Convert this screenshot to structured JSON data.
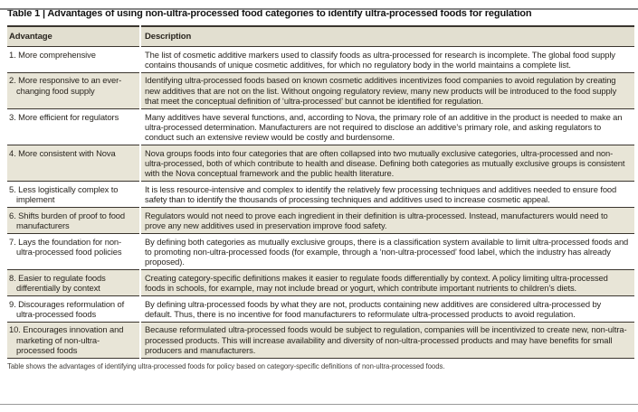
{
  "page": {
    "title": "Table 1 | Advantages of using non-ultra-processed food categories to identify ultra-processed foods for regulation",
    "footnote": "Table shows the advantages of identifying ultra-processed foods for policy based on category-specific definitions of non-ultra-processed foods."
  },
  "colors": {
    "row_shade": "#e8e5d7",
    "header_shade": "#e2dfd0",
    "rule_dark": "#3a352e",
    "rule_gray": "#8c8c8c",
    "text": "#29251f"
  },
  "table": {
    "columns": [
      "Advantage",
      "Description"
    ],
    "rows": [
      {
        "advantage": "1. More comprehensive",
        "description": "The list of cosmetic additive markers used to classify foods as ultra-processed for research is incomplete. The global food supply contains thousands of unique cosmetic additives, for which no regulatory body in the world maintains a complete list."
      },
      {
        "advantage": "2. More responsive to an ever-changing food supply",
        "description": "Identifying ultra-processed foods based on known cosmetic additives incentivizes food companies to avoid regulation by creating new additives that are not on the list. Without ongoing regulatory review, many new products will be introduced to the food supply that meet the conceptual definition of ‘ultra-processed’ but cannot be identified for regulation."
      },
      {
        "advantage": "3. More efficient for regulators",
        "description": "Many additives have several functions, and, according to Nova, the primary role of an additive in the product is needed to make an ultra-processed determination. Manufacturers are not required to disclose an additive’s primary role, and asking regulators to conduct such an extensive review would be costly and burdensome."
      },
      {
        "advantage": "4. More consistent with Nova",
        "description": "Nova groups foods into four categories that are often collapsed into two mutually exclusive categories, ultra-processed and non-ultra-processed, both of which contribute to health and disease. Defining both categories as mutually exclusive groups is consistent with the Nova conceptual framework and the public health literature."
      },
      {
        "advantage": "5. Less logistically complex to implement",
        "description": "It is less resource-intensive and complex to identify the relatively few processing techniques and additives needed to ensure food safety than to identify the thousands of processing techniques and additives used to increase cosmetic appeal."
      },
      {
        "advantage": "6. Shifts burden of proof to food manufacturers",
        "description": "Regulators would not need to prove each ingredient in their definition is ultra-processed. Instead, manufacturers would need to prove any new additives used in preservation improve food safety."
      },
      {
        "advantage": "7. Lays the foundation for non-ultra-processed food policies",
        "description": "By defining both categories as mutually exclusive groups, there is a classification system available to limit ultra-processed foods and to promoting non-ultra-processed foods (for example, through a ‘non-ultra-processed’ food label, which the industry has already proposed)."
      },
      {
        "advantage": "8. Easier to regulate foods differentially by context",
        "description": "Creating category-specific definitions makes it easier to regulate foods differentially by context. A policy limiting ultra-processed foods in schools, for example, may not include bread or yogurt, which contribute important nutrients to children’s diets."
      },
      {
        "advantage": "9. Discourages reformulation of ultra-processed foods",
        "description": "By defining ultra-processed foods by what they are not, products containing new additives are considered ultra-processed by default. Thus, there is no incentive for food manufacturers to reformulate ultra-processed products to avoid regulation."
      },
      {
        "advantage": "10. Encourages innovation and marketing of non-ultra-processed foods",
        "description": "Because reformulated ultra-processed foods would be subject to regulation, companies will be incentivized to create new, non-ultra-processed products. This will increase availability and diversity of non-ultra-processed products and may have benefits for small producers and manufacturers."
      }
    ]
  }
}
